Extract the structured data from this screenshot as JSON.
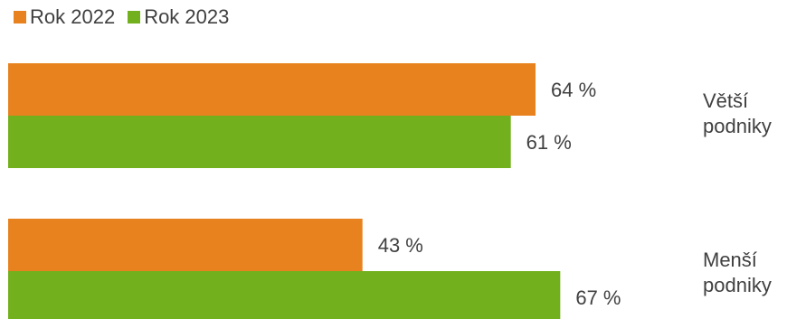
{
  "chart_data": {
    "type": "bar",
    "orientation": "horizontal",
    "categories": [
      "Větší\npodniky",
      "Menší\npodniky"
    ],
    "series": [
      {
        "name": "Rok 2022",
        "color": "#E8821E",
        "values": [
          64,
          43
        ],
        "labels": [
          "64 %",
          "43 %"
        ]
      },
      {
        "name": "Rok 2023",
        "color": "#72B01D",
        "values": [
          61,
          67
        ],
        "labels": [
          "61 %",
          "67 %"
        ]
      }
    ],
    "xlim": [
      0,
      100
    ],
    "unit": "%",
    "grid": false,
    "legend_position": "top-left",
    "category_label_position": "right"
  }
}
